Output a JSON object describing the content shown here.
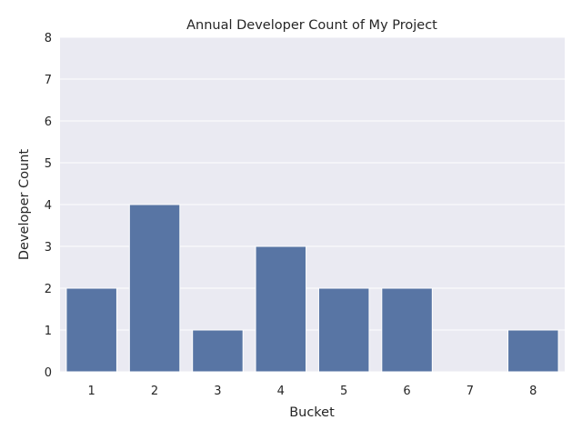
{
  "chart_data": {
    "type": "bar",
    "title": "Annual Developer Count of My Project",
    "xlabel": "Bucket",
    "ylabel": "Developer Count",
    "categories": [
      "1",
      "2",
      "3",
      "4",
      "5",
      "6",
      "7",
      "8"
    ],
    "values": [
      2,
      4,
      1,
      3,
      2,
      2,
      0,
      1
    ],
    "ylim": [
      0,
      8
    ],
    "yticks": [
      0,
      1,
      2,
      3,
      4,
      5,
      6,
      7,
      8
    ],
    "grid": true,
    "legend": "none"
  },
  "colors": {
    "bar": "#5875a4",
    "bar_edge": "#ffffff",
    "plot_background": "#eaeaf2",
    "grid": "#ffffff",
    "text": "#262626"
  }
}
